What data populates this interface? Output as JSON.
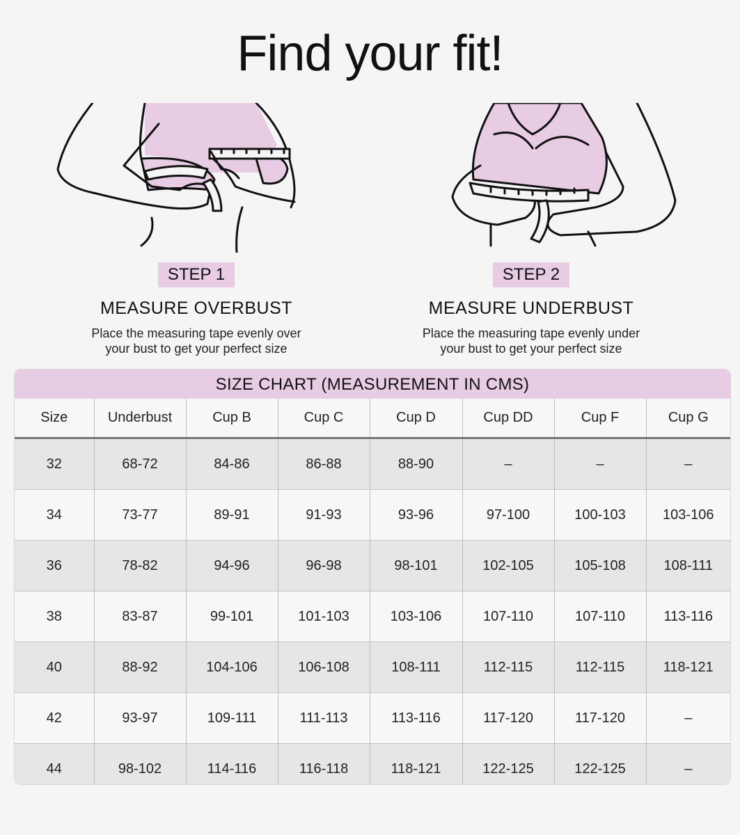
{
  "title": "Find your fit!",
  "steps": [
    {
      "badge": "STEP 1",
      "heading": "MEASURE OVERBUST",
      "desc_line1": "Place the measuring tape evenly over",
      "desc_line2": "your bust to get your perfect size"
    },
    {
      "badge": "STEP 2",
      "heading": "MEASURE UNDERBUST",
      "desc_line1": "Place the measuring tape evenly under",
      "desc_line2": "your bust to get your perfect size"
    }
  ],
  "colors": {
    "accent_pink": "#e8cce4",
    "background": "#f5f5f5",
    "row_shade": "#e6e6e6"
  },
  "size_chart": {
    "title": "SIZE CHART (MEASUREMENT IN CMS)",
    "columns": [
      "Size",
      "Underbust",
      "Cup B",
      "Cup C",
      "Cup D",
      "Cup DD",
      "Cup F",
      "Cup G"
    ],
    "rows": [
      [
        "32",
        "68-72",
        "84-86",
        "86-88",
        "88-90",
        "–",
        "–",
        "–"
      ],
      [
        "34",
        "73-77",
        "89-91",
        "91-93",
        "93-96",
        "97-100",
        "100-103",
        "103-106"
      ],
      [
        "36",
        "78-82",
        "94-96",
        "96-98",
        "98-101",
        "102-105",
        "105-108",
        "108-111"
      ],
      [
        "38",
        "83-87",
        "99-101",
        "101-103",
        "103-106",
        "107-110",
        "107-110",
        "113-116"
      ],
      [
        "40",
        "88-92",
        "104-106",
        "106-108",
        "108-111",
        "112-115",
        "112-115",
        "118-121"
      ],
      [
        "42",
        "93-97",
        "109-111",
        "111-113",
        "113-116",
        "117-120",
        "117-120",
        "–"
      ],
      [
        "44",
        "98-102",
        "114-116",
        "116-118",
        "118-121",
        "122-125",
        "122-125",
        "–"
      ]
    ]
  }
}
